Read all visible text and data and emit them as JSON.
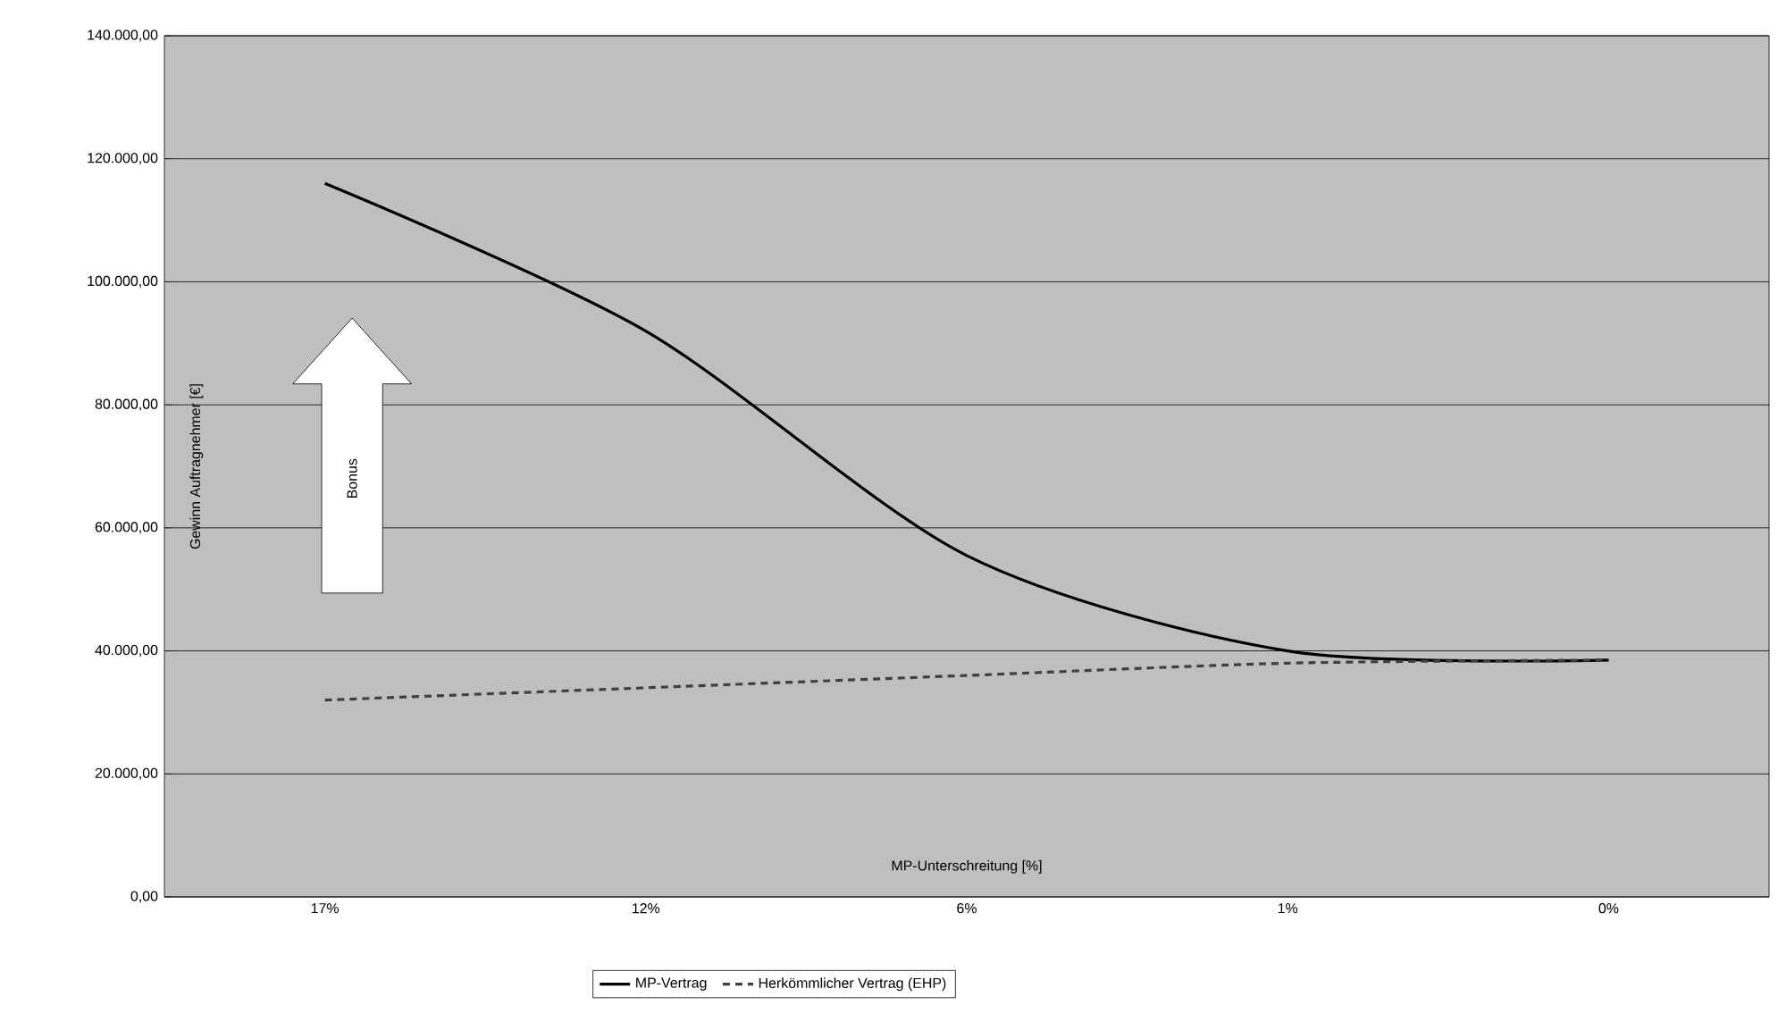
{
  "chart_data": {
    "type": "line",
    "xlabel": "MP-Unterschreitung [%]",
    "ylabel": "Gewinn Auftragnehmer [€]",
    "categories": [
      "17%",
      "12%",
      "6%",
      "1%",
      "0%"
    ],
    "series": [
      {
        "name": "MP-Vertrag",
        "color": "#000000",
        "line_style": "solid",
        "values": [
          116000,
          92000,
          55500,
          40000,
          38500
        ]
      },
      {
        "name": "Herkömmlicher Vertrag (EHP)",
        "color": "#404040",
        "line_style": "dashed",
        "values": [
          32000,
          34000,
          36000,
          38000,
          38500
        ]
      }
    ],
    "ylim": [
      0,
      140000
    ],
    "yticks": [
      {
        "value": 0,
        "label": "0,00"
      },
      {
        "value": 20000,
        "label": "20.000,00"
      },
      {
        "value": 40000,
        "label": "40.000,00"
      },
      {
        "value": 60000,
        "label": "60.000,00"
      },
      {
        "value": 80000,
        "label": "80.000,00"
      },
      {
        "value": 100000,
        "label": "100.000,00"
      },
      {
        "value": 120000,
        "label": "120.000,00"
      },
      {
        "value": 140000,
        "label": "140.000,00"
      }
    ],
    "grid": "y",
    "legend": "bottom",
    "marker": "none",
    "annotations": [
      "Bonus"
    ]
  }
}
